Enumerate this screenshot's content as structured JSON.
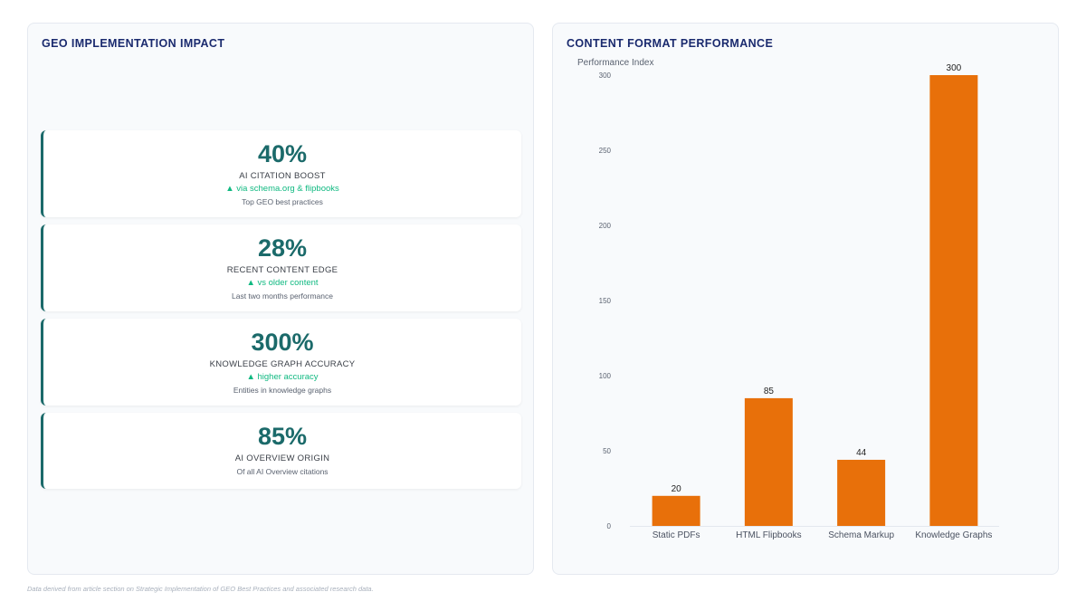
{
  "left_panel": {
    "title": "GEO IMPLEMENTATION IMPACT",
    "kpis": [
      {
        "value": "40%",
        "label": "AI CITATION BOOST",
        "trend": "▲ via schema.org & flipbooks",
        "note": "Top GEO best practices"
      },
      {
        "value": "28%",
        "label": "RECENT CONTENT EDGE",
        "trend": "▲ vs older content",
        "note": "Last two months performance"
      },
      {
        "value": "300%",
        "label": "KNOWLEDGE GRAPH ACCURACY",
        "trend": "▲ higher accuracy",
        "note": "Entities in knowledge graphs"
      },
      {
        "value": "85%",
        "label": "AI OVERVIEW ORIGIN",
        "note": "Of all AI Overview citations"
      }
    ]
  },
  "right_panel": {
    "title": "CONTENT FORMAT PERFORMANCE"
  },
  "chart_data": {
    "type": "bar",
    "ylabel": "Performance Index",
    "categories": [
      "Static PDFs",
      "HTML Flipbooks",
      "Schema Markup",
      "Knowledge Graphs"
    ],
    "values": [
      20,
      85,
      44,
      300
    ],
    "ylim": [
      0,
      300
    ],
    "yticks": [
      0,
      50,
      100,
      150,
      200,
      250,
      300
    ],
    "bar_color": "#e8700a",
    "grid": false,
    "data_labels": true
  },
  "footnote": "Data derived from article section on Strategic Implementation of GEO Best Practices and associated research data."
}
